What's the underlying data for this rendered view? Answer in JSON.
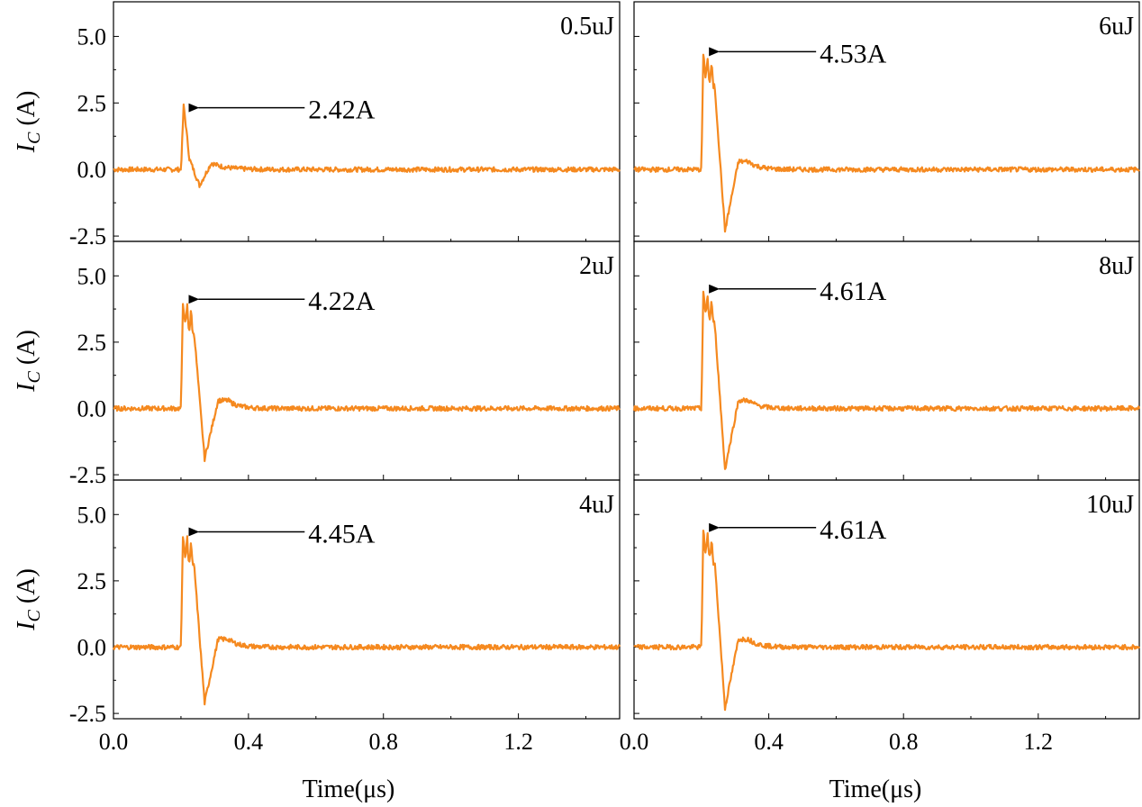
{
  "x_label": "Time(μs)",
  "y_label_main": "I",
  "y_label_sub": "C",
  "y_label_unit": " (A)",
  "y_tick_labels": [
    "-2.5",
    "0.0",
    "2.5",
    "5.0"
  ],
  "x_tick_labels": [
    "0.0",
    "0.4",
    "0.8",
    "1.2"
  ],
  "colors": {
    "trace": "#f5891f",
    "axes": "#000000",
    "arrow": "#000000"
  },
  "chart_data": [
    {
      "type": "line",
      "title": "0.5uJ",
      "col": 0,
      "row": 0,
      "peak": 2.42,
      "peak_label": "2.42A",
      "trough": -0.6,
      "shape": "small",
      "xlim": [
        0,
        1.5
      ],
      "ylim": [
        -2.7,
        6.3
      ]
    },
    {
      "type": "line",
      "title": "2uJ",
      "col": 0,
      "row": 1,
      "peak": 4.22,
      "peak_label": "4.22A",
      "trough": -1.9,
      "shape": "large",
      "xlim": [
        0,
        1.5
      ],
      "ylim": [
        -2.7,
        6.3
      ]
    },
    {
      "type": "line",
      "title": "4uJ",
      "col": 0,
      "row": 2,
      "peak": 4.45,
      "peak_label": "4.45A",
      "trough": -2.1,
      "shape": "large",
      "xlim": [
        0,
        1.5
      ],
      "ylim": [
        -2.7,
        6.3
      ]
    },
    {
      "type": "line",
      "title": "6uJ",
      "col": 1,
      "row": 0,
      "peak": 4.53,
      "peak_label": "4.53A",
      "trough": -2.3,
      "shape": "large",
      "xlim": [
        0,
        1.5
      ],
      "ylim": [
        -2.7,
        6.3
      ]
    },
    {
      "type": "line",
      "title": "8uJ",
      "col": 1,
      "row": 1,
      "peak": 4.61,
      "peak_label": "4.61A",
      "trough": -2.3,
      "shape": "large",
      "xlim": [
        0,
        1.5
      ],
      "ylim": [
        -2.7,
        6.3
      ]
    },
    {
      "type": "line",
      "title": "10uJ",
      "col": 1,
      "row": 2,
      "peak": 4.61,
      "peak_label": "4.61A",
      "trough": -2.3,
      "shape": "large",
      "xlim": [
        0,
        1.5
      ],
      "ylim": [
        -2.7,
        6.3
      ]
    }
  ]
}
